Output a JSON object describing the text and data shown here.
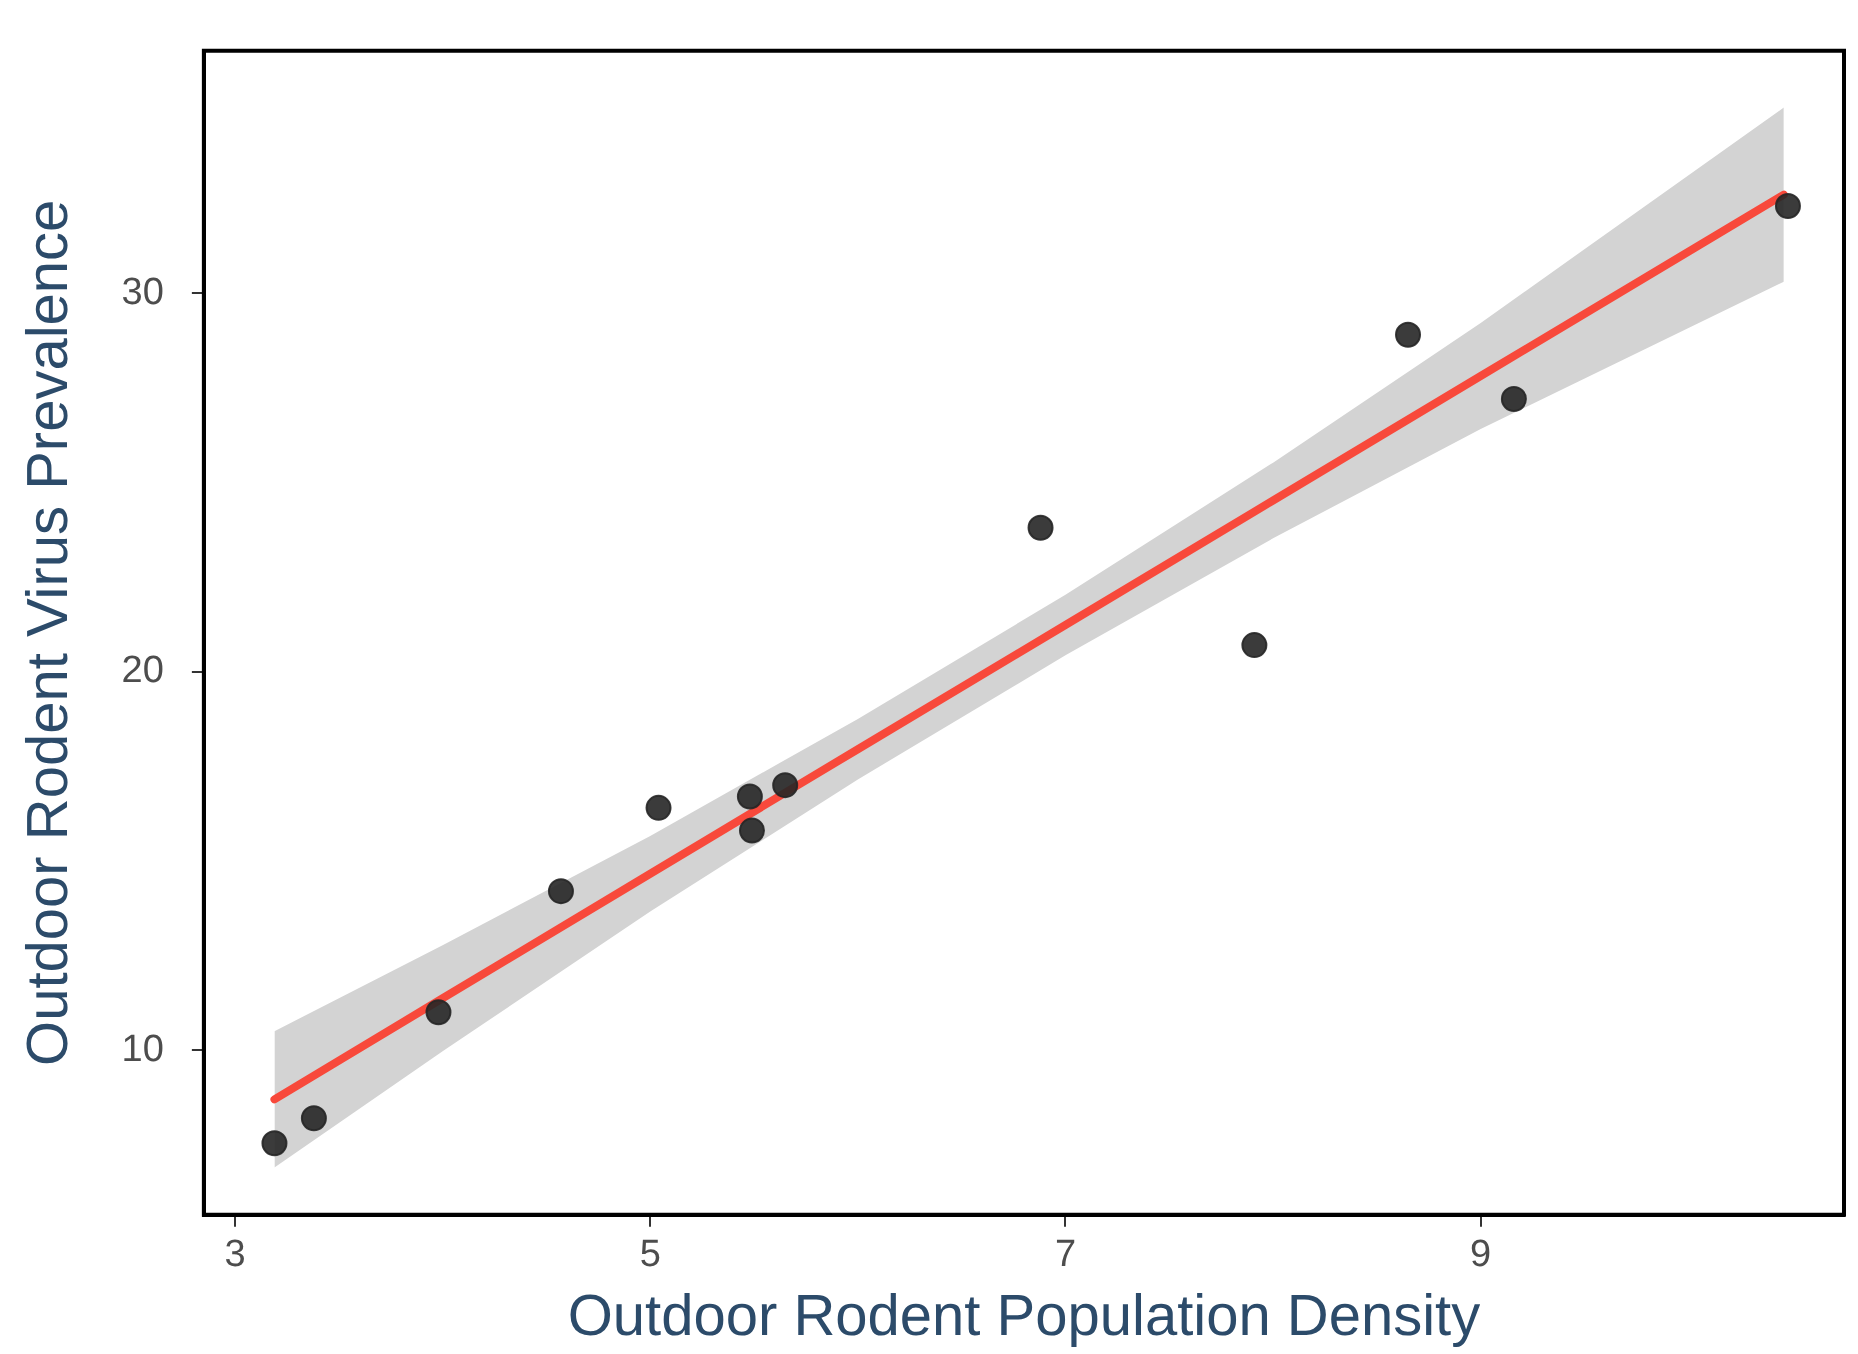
{
  "chart_data": {
    "type": "scatter",
    "xlabel": "Outdoor Rodent Population Density",
    "ylabel": "Outdoor Rodent Virus Prevalence",
    "xlim": [
      2.85,
      10.75
    ],
    "xticks": [
      3,
      5,
      7,
      9
    ],
    "ylim": [
      5.65,
      36.4
    ],
    "yticks": [
      10,
      20,
      30
    ],
    "grid": false,
    "legend": false,
    "marker": "circle",
    "series": [
      {
        "type": "line",
        "color": "#f8493b",
        "x": [
          3.19,
          4,
          5,
          6,
          7,
          8,
          9,
          10.46
        ],
        "values": [
          8.7,
          11.37,
          14.66,
          17.95,
          21.23,
          24.52,
          27.81,
          32.6
        ],
        "lower": [
          6.9,
          9.97,
          13.66,
          17.15,
          20.43,
          23.52,
          26.41,
          30.3
        ],
        "upper": [
          10.5,
          12.77,
          15.66,
          18.75,
          22.03,
          25.52,
          29.21,
          34.9
        ],
        "marker": "none"
      },
      {
        "color": "#262626",
        "x": [
          3.19,
          3.38,
          3.98,
          4.57,
          5.04,
          5.48,
          5.49,
          5.65,
          6.88,
          7.91,
          8.65,
          9.16,
          10.48
        ],
        "values": [
          7.54,
          8.2,
          11.0,
          14.2,
          16.4,
          16.7,
          15.8,
          17.0,
          23.8,
          20.7,
          28.9,
          27.2,
          32.3
        ]
      }
    ]
  }
}
